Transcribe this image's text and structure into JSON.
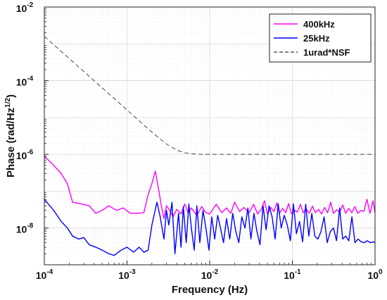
{
  "chart_data": {
    "type": "line",
    "title": "",
    "xlabel": "Frequency (Hz)",
    "ylabel": "Phase (rad/Hz",
    "ylabel_sup": "1/2",
    "ylabel_close": ")",
    "xscale": "log",
    "yscale": "log",
    "xlim": [
      0.0001,
      1
    ],
    "ylim": [
      1e-09,
      0.01
    ],
    "grid": true,
    "legend_position": "top-right",
    "x_ticks": [
      {
        "value": 0.0001,
        "base": "10",
        "exp": "-4"
      },
      {
        "value": 0.001,
        "base": "10",
        "exp": "-3"
      },
      {
        "value": 0.01,
        "base": "10",
        "exp": "-2"
      },
      {
        "value": 0.1,
        "base": "10",
        "exp": "-1"
      },
      {
        "value": 1,
        "base": "10",
        "exp": "0"
      }
    ],
    "y_ticks": [
      {
        "value": 1e-08,
        "base": "10",
        "exp": "-8"
      },
      {
        "value": 1e-06,
        "base": "10",
        "exp": "-6"
      },
      {
        "value": 0.0001,
        "base": "10",
        "exp": "-4"
      },
      {
        "value": 0.01,
        "base": "10",
        "exp": "-2"
      }
    ],
    "series": [
      {
        "name": "400kHz",
        "color": "#ff00ff",
        "style": "solid",
        "x": [
          0.0001,
          0.00013,
          0.00016,
          0.00019,
          0.00022,
          0.00028,
          0.00035,
          0.00042,
          0.0005,
          0.0006,
          0.00075,
          0.0009,
          0.0011,
          0.0013,
          0.0016,
          0.0018,
          0.002,
          0.0022,
          0.0024,
          0.0026,
          0.0028,
          0.003,
          0.0033,
          0.0036,
          0.004,
          0.0045,
          0.005,
          0.0055,
          0.006,
          0.007,
          0.008,
          0.009,
          0.01,
          0.012,
          0.014,
          0.016,
          0.018,
          0.02,
          0.023,
          0.026,
          0.03,
          0.034,
          0.038,
          0.042,
          0.046,
          0.05,
          0.055,
          0.06,
          0.065,
          0.07,
          0.076,
          0.083,
          0.09,
          0.098,
          0.106,
          0.115,
          0.125,
          0.135,
          0.147,
          0.16,
          0.175,
          0.19,
          0.207,
          0.225,
          0.245,
          0.267,
          0.29,
          0.315,
          0.343,
          0.373,
          0.406,
          0.442,
          0.481,
          0.523,
          0.569,
          0.619,
          0.674,
          0.733,
          0.798,
          0.868,
          0.945,
          1.0
        ],
        "y": [
          9e-07,
          5e-07,
          3e-07,
          1.6e-07,
          5e-08,
          4.5e-08,
          4e-08,
          2.5e-08,
          3e-08,
          4e-08,
          3e-08,
          3.5e-08,
          2.5e-08,
          2.5e-08,
          2.6e-08,
          8e-08,
          1.6e-07,
          3.5e-07,
          1.2e-07,
          4e-08,
          1.8e-08,
          4e-08,
          3e-08,
          2e-08,
          3.2e-08,
          2.4e-08,
          4.5e-08,
          2.5e-08,
          3.5e-08,
          2.2e-08,
          3.8e-08,
          2.6e-08,
          2.4e-08,
          4.4e-08,
          2.6e-08,
          3.5e-08,
          2.5e-08,
          5e-08,
          2.8e-08,
          3.6e-08,
          2.6e-08,
          4.4e-08,
          2.4e-08,
          3.2e-08,
          5.5e-08,
          2.4e-08,
          3.6e-08,
          2.8e-08,
          4.8e-08,
          2.5e-08,
          3.4e-08,
          2.6e-08,
          4.6e-08,
          2.4e-08,
          3e-08,
          2.7e-08,
          4.4e-08,
          2.6e-08,
          3.3e-08,
          2.5e-08,
          3.9e-08,
          2.6e-08,
          3.2e-08,
          2.4e-08,
          3.6e-08,
          2.6e-08,
          5e-08,
          2.5e-08,
          3.1e-08,
          2.7e-08,
          4.2e-08,
          2.5e-08,
          3.4e-08,
          2.6e-08,
          3.8e-08,
          2.5e-08,
          3e-08,
          2.8e-08,
          6e-08,
          2.5e-08,
          5.5e-08,
          2.6e-08
        ]
      },
      {
        "name": "25kHz",
        "color": "#0000ff",
        "style": "solid",
        "x": [
          0.0001,
          0.00013,
          0.00016,
          0.00019,
          0.00022,
          0.00026,
          0.0003,
          0.00035,
          0.00042,
          0.0005,
          0.0006,
          0.0007,
          0.00085,
          0.001,
          0.0012,
          0.0014,
          0.0016,
          0.0018,
          0.002,
          0.0023,
          0.0025,
          0.0028,
          0.003,
          0.0032,
          0.0035,
          0.0038,
          0.0042,
          0.0045,
          0.0048,
          0.0052,
          0.0056,
          0.006,
          0.0065,
          0.007,
          0.0076,
          0.0083,
          0.009,
          0.0098,
          0.0106,
          0.0115,
          0.0125,
          0.0135,
          0.0147,
          0.016,
          0.0175,
          0.019,
          0.0207,
          0.0225,
          0.0245,
          0.0267,
          0.029,
          0.0315,
          0.0343,
          0.0373,
          0.0406,
          0.0442,
          0.0481,
          0.0523,
          0.0569,
          0.0619,
          0.0674,
          0.0733,
          0.0798,
          0.0868,
          0.0945,
          0.103,
          0.112,
          0.122,
          0.133,
          0.145,
          0.158,
          0.172,
          0.187,
          0.204,
          0.222,
          0.242,
          0.264,
          0.288,
          0.314,
          0.342,
          0.373,
          0.406,
          0.442,
          0.482,
          0.525,
          0.572,
          0.623,
          0.679,
          0.74,
          0.806,
          0.878,
          0.956,
          1.0
        ],
        "y": [
          6e-08,
          3e-08,
          1.5e-08,
          1e-08,
          6e-09,
          5e-09,
          5.5e-09,
          3.5e-09,
          3e-09,
          2.5e-09,
          2e-09,
          1.8e-09,
          2.5e-09,
          3e-09,
          2.2e-09,
          3e-09,
          2.2e-09,
          2.5e-09,
          1.2e-08,
          5e-08,
          2.2e-08,
          5e-09,
          3e-08,
          1.2e-08,
          5e-08,
          2e-09,
          2.5e-08,
          3e-09,
          3.8e-08,
          4e-09,
          4.5e-08,
          1e-08,
          2.5e-09,
          4e-08,
          4e-09,
          3e-08,
          1e-08,
          2.5e-09,
          2e-08,
          5e-09,
          2.2e-08,
          1e-08,
          4e-09,
          1.8e-08,
          5e-09,
          2.5e-08,
          8e-09,
          4e-09,
          2e-08,
          1e-08,
          3.5e-08,
          5e-09,
          2.5e-08,
          8e-09,
          3.5e-09,
          4e-08,
          9e-09,
          4e-08,
          2e-08,
          5e-09,
          4.5e-08,
          1e-08,
          2.2e-08,
          1.2e-08,
          4.5e-09,
          4.5e-08,
          7e-09,
          1.5e-08,
          4.2e-09,
          4.4e-08,
          6e-09,
          2.5e-08,
          6e-09,
          5e-09,
          8e-09,
          2e-08,
          4e-09,
          8e-09,
          1e-08,
          4.5e-09,
          3.5e-08,
          5e-09,
          6e-09,
          4.5e-09,
          2e-08,
          4e-09,
          5e-09,
          4.2e-09,
          4e-09,
          4.5e-09,
          4e-09,
          4.2e-09,
          4e-09
        ]
      },
      {
        "name": "1urad*NSF",
        "color": "#555555",
        "style": "dashed",
        "x": [
          0.0001,
          0.0002,
          0.0003,
          0.0005,
          0.0007,
          0.001,
          0.0015,
          0.002,
          0.003,
          0.004,
          0.005,
          0.006,
          0.007,
          0.008,
          0.01,
          0.02,
          0.05,
          0.1,
          0.2,
          0.5,
          1.0
        ],
        "y": [
          0.0016,
          0.0004,
          0.000178,
          6.4e-05,
          3.27e-05,
          1.6e-05,
          7.1e-06,
          4e-06,
          1.9e-06,
          1.3e-06,
          1.1e-06,
          1.04e-06,
          1.01e-06,
          1e-06,
          1e-06,
          1e-06,
          1e-06,
          1e-06,
          1e-06,
          1e-06,
          1e-06
        ]
      }
    ]
  }
}
